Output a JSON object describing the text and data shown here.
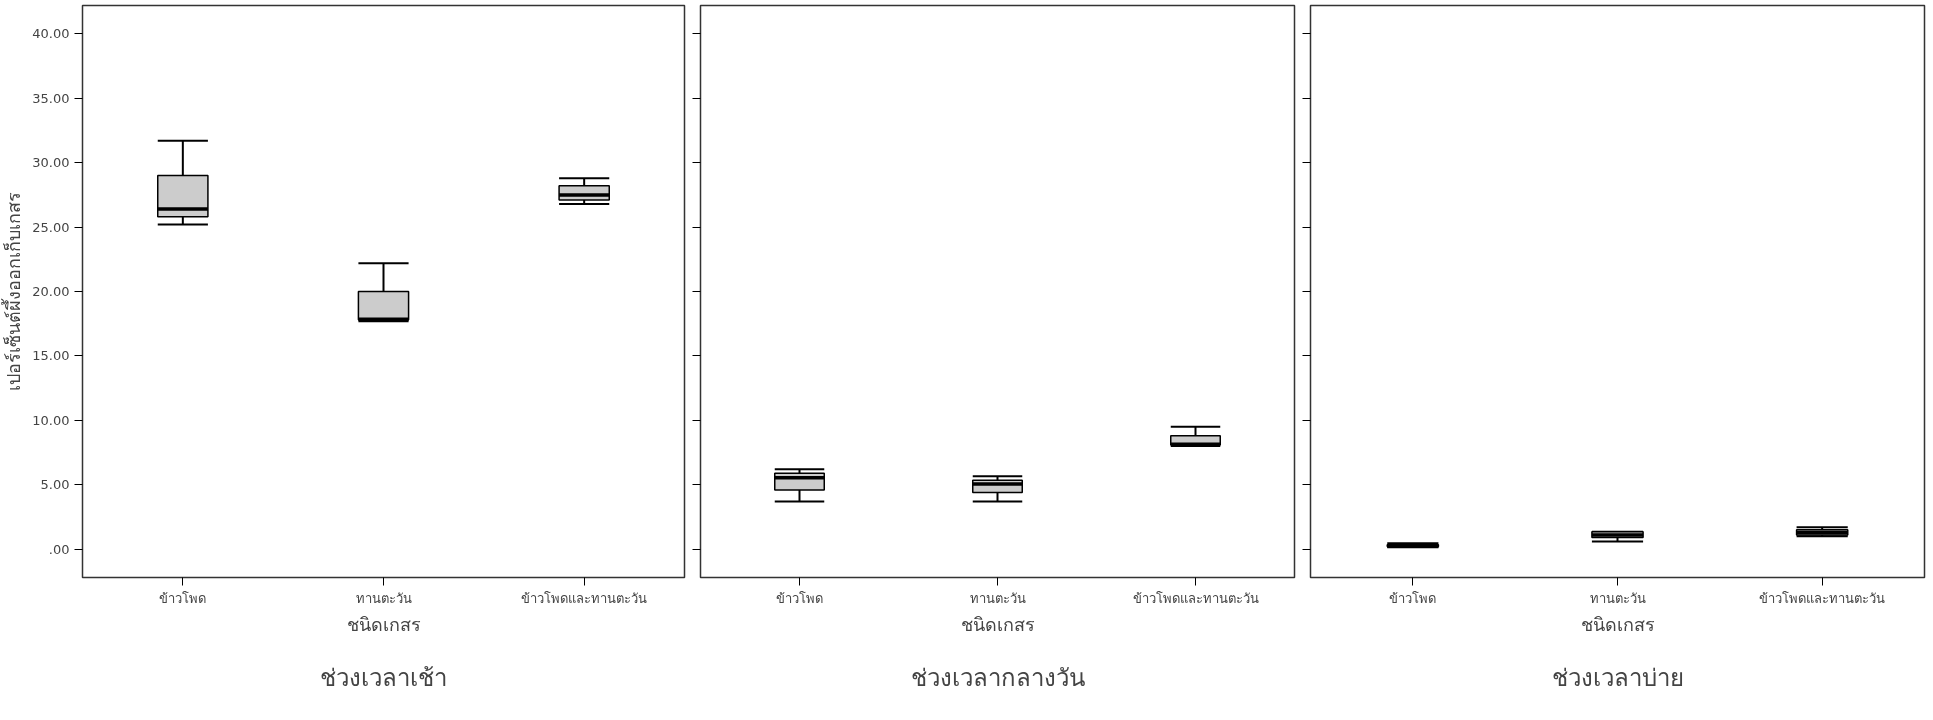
{
  "chart_data": [
    {
      "type": "box",
      "title": "ช่วงเวลาเช้า",
      "xlabel": "ชนิดเกสร",
      "ylabel": "เปอร์เซ็นต์ผึ้งออกเก็บเกสร",
      "color": "#cccccc",
      "categories": [
        "ข้าวโพด",
        "ทานตะวัน",
        "ข้าวโพดและทานตะวัน"
      ],
      "boxes": [
        {
          "low": 25.2,
          "q1": 25.8,
          "median": 26.4,
          "q3": 29.0,
          "high": 31.7
        },
        {
          "low": 17.7,
          "q1": 17.8,
          "median": 17.85,
          "q3": 20.0,
          "high": 22.2
        },
        {
          "low": 26.8,
          "q1": 27.1,
          "median": 27.5,
          "q3": 28.2,
          "high": 28.8
        }
      ],
      "ylim": [
        -2.2,
        42.2
      ],
      "yticks": [
        {
          "value": 0,
          "label": ".00"
        },
        {
          "value": 5,
          "label": "5.00"
        },
        {
          "value": 10,
          "label": "10.00"
        },
        {
          "value": 15,
          "label": "15.00"
        },
        {
          "value": 20,
          "label": "20.00"
        },
        {
          "value": 25,
          "label": "25.00"
        },
        {
          "value": 30,
          "label": "30.00"
        },
        {
          "value": 35,
          "label": "35.00"
        },
        {
          "value": 40,
          "label": "40.00"
        }
      ],
      "grid": false
    },
    {
      "type": "box",
      "title": "ช่วงเวลากลางวัน",
      "xlabel": "ชนิดเกสร",
      "color": "#cccccc",
      "categories": [
        "ข้าวโพด",
        "ทานตะวัน",
        "ข้าวโพดและทานตะวัน"
      ],
      "boxes": [
        {
          "low": 3.7,
          "q1": 4.6,
          "median": 5.55,
          "q3": 5.9,
          "high": 6.2
        },
        {
          "low": 3.7,
          "q1": 4.4,
          "median": 5.05,
          "q3": 5.35,
          "high": 5.65
        },
        {
          "low": 8.0,
          "q1": 8.1,
          "median": 8.15,
          "q3": 8.8,
          "high": 9.5
        }
      ],
      "ylim": [
        -2.2,
        42.2
      ],
      "yticks": [
        0,
        5,
        10,
        15,
        20,
        25,
        30,
        35,
        40
      ],
      "tick_labels": "x",
      "grid": false
    },
    {
      "type": "box",
      "title": "ช่วงเวลาบ่าย",
      "xlabel": "ชนิดเกสร",
      "color": "#cccccc",
      "categories": [
        "ข้าวโพด",
        "ทานตะวัน",
        "ข้าวโพดและทานตะวัน"
      ],
      "boxes": [
        {
          "low": 0.15,
          "q1": 0.2,
          "median": 0.25,
          "q3": 0.35,
          "high": 0.45
        },
        {
          "low": 0.6,
          "q1": 0.9,
          "median": 1.1,
          "q3": 1.35,
          "high": 1.35
        },
        {
          "low": 1.0,
          "q1": 1.1,
          "median": 1.3,
          "q3": 1.5,
          "high": 1.7
        }
      ],
      "ylim": [
        -2.2,
        42.2
      ],
      "yticks": [
        0,
        5,
        10,
        15,
        20,
        25,
        30,
        35,
        40
      ],
      "tick_labels": "x",
      "grid": false
    }
  ]
}
